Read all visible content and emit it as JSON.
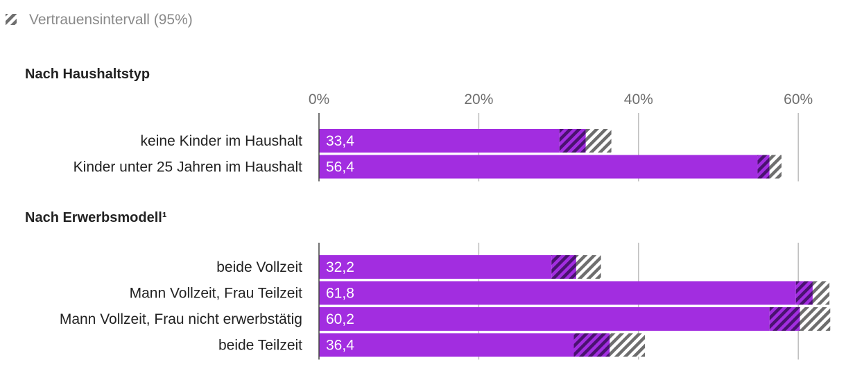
{
  "chart_data": {
    "type": "bar",
    "orientation": "horizontal",
    "legend": {
      "label": "Vertrauensintervall (95%)",
      "placement": "top-left"
    },
    "xlim": [
      0,
      64
    ],
    "ticks": [
      0,
      20,
      40,
      60
    ],
    "tick_labels": [
      "0%",
      "20%",
      "40%",
      "60%"
    ],
    "groups": [
      {
        "title": "Nach Haushaltstyp",
        "show_ticks": true,
        "bars": [
          {
            "label": "keine Kinder im Haushalt",
            "value": 33.4,
            "value_label": "33,4",
            "ci": [
              30.1,
              36.6
            ]
          },
          {
            "label": "Kinder unter 25 Jahren im Haushalt",
            "value": 56.4,
            "value_label": "56,4",
            "ci": [
              54.9,
              57.9
            ]
          }
        ]
      },
      {
        "title": "Nach Erwerbsmodell¹",
        "show_ticks": false,
        "bars": [
          {
            "label": "beide Vollzeit",
            "value": 32.2,
            "value_label": "32,2",
            "ci": [
              29.1,
              35.3
            ]
          },
          {
            "label": "Mann Vollzeit, Frau Teilzeit",
            "value": 61.8,
            "value_label": "61,8",
            "ci": [
              59.7,
              63.9
            ]
          },
          {
            "label": "Mann Vollzeit, Frau nicht erwerbstätig",
            "value": 60.2,
            "value_label": "60,2",
            "ci": [
              56.4,
              64.0
            ]
          },
          {
            "label": "beide Teilzeit",
            "value": 36.4,
            "value_label": "36,4",
            "ci": [
              31.9,
              40.8
            ]
          }
        ]
      }
    ]
  },
  "colors": {
    "bar": "#a22de0",
    "ci_dark": "#4a1270",
    "ci_gray": "#6e6e6e",
    "grid": "#bdbdbd"
  }
}
